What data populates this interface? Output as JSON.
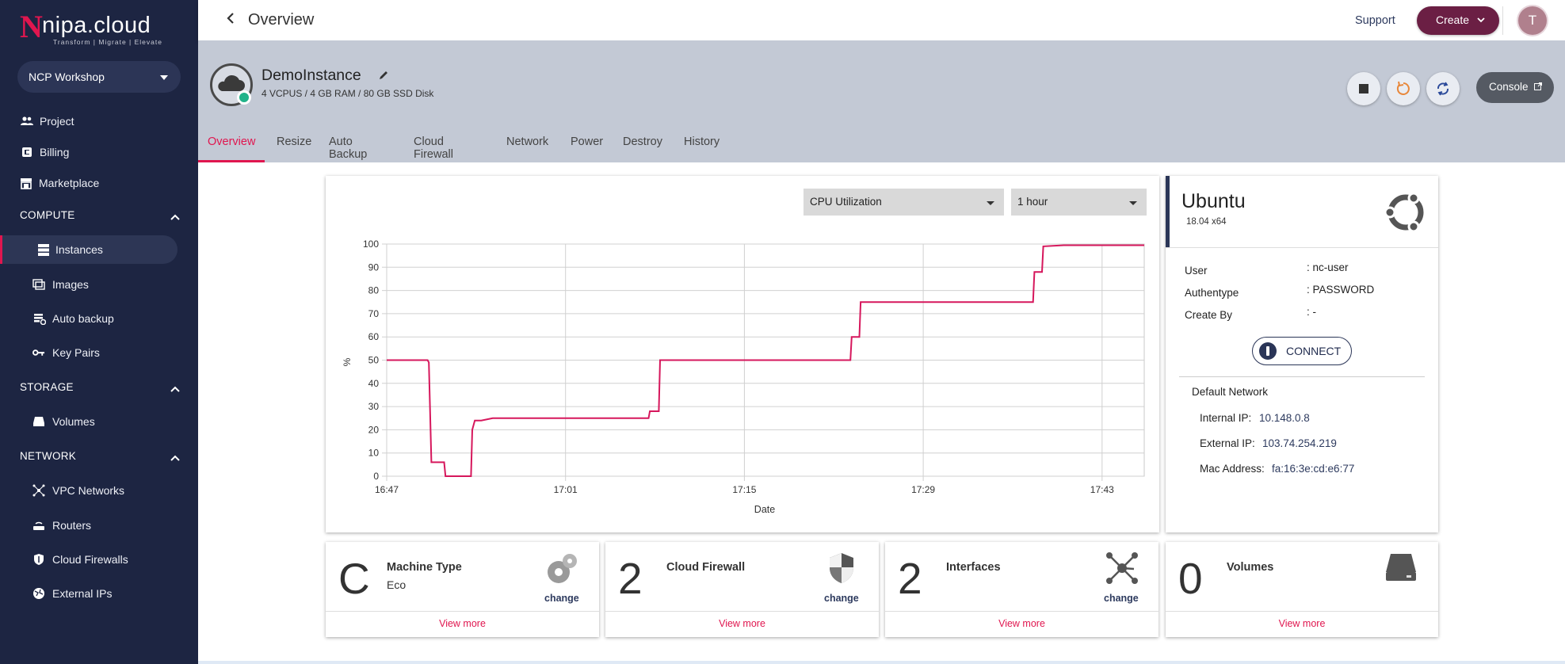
{
  "brand": {
    "letter": "N",
    "name": "nipa.cloud",
    "tagline": "Transform | Migrate | Elevate"
  },
  "workspace": {
    "label": "NCP Workshop"
  },
  "sidebar": {
    "top_items": [
      {
        "label": "Project",
        "icon": "people-icon"
      },
      {
        "label": "Billing",
        "icon": "billing-icon"
      },
      {
        "label": "Marketplace",
        "icon": "store-icon"
      }
    ],
    "sections": [
      {
        "label": "COMPUTE",
        "items": [
          "Instances",
          "Images",
          "Auto backup",
          "Key Pairs"
        ]
      },
      {
        "label": "STORAGE",
        "items": [
          "Volumes"
        ]
      },
      {
        "label": "NETWORK",
        "items": [
          "VPC Networks",
          "Routers",
          "Cloud Firewalls",
          "External IPs"
        ]
      }
    ],
    "active_item": "Instances"
  },
  "topbar": {
    "title": "Overview",
    "support": "Support",
    "create": "Create",
    "avatar": "T"
  },
  "instance": {
    "name": "DemoInstance",
    "spec": "4 VCPUS / 4 GB RAM / 80 GB SSD Disk",
    "status_color": "#21b38a",
    "console": "Console"
  },
  "tabs": [
    "Overview",
    "Resize",
    "Auto Backup",
    "Cloud Firewall",
    "Network",
    "Power",
    "Destroy",
    "History"
  ],
  "active_tab": "Overview",
  "metric_select": "CPU Utilization",
  "range_select": "1 hour",
  "chart_data": {
    "type": "line",
    "xlabel": "Date",
    "ylabel": "%",
    "ylim": [
      0,
      100
    ],
    "yticks": [
      0,
      10,
      20,
      30,
      40,
      50,
      60,
      70,
      80,
      90,
      100
    ],
    "xticks": [
      "16:47",
      "17:01",
      "17:15",
      "17:29",
      "17:43"
    ],
    "xlim_minutes": [
      0,
      59.3
    ],
    "grid": true,
    "color": "#d6175c",
    "series": [
      {
        "x_minutes": [
          0,
          3.2,
          3.3,
          3.5,
          4.5,
          4.6,
          6.6,
          6.7,
          6.9,
          7.4,
          8.3,
          8.4,
          20.5,
          20.6,
          21.3,
          21.4,
          36.3,
          36.4,
          37.0,
          37.1,
          50.6,
          50.7,
          51.3,
          51.4,
          53.0,
          54.0,
          59.3
        ],
        "values": [
          50,
          50,
          49,
          6,
          6,
          0,
          0,
          20,
          24,
          24,
          25,
          25,
          25,
          28,
          28,
          50,
          50,
          60,
          60,
          75,
          75,
          88,
          88,
          99,
          99.5,
          99.5,
          99.5
        ]
      }
    ]
  },
  "os": {
    "name": "Ubuntu",
    "version": "18.04 x64",
    "icon": "ubuntu-icon"
  },
  "details": [
    {
      "key": "User",
      "value": ": nc-user"
    },
    {
      "key": "Authentype",
      "value": ": PASSWORD"
    },
    {
      "key": "Create By",
      "value": ": -"
    }
  ],
  "connect_label": "CONNECT",
  "network": {
    "title": "Default Network",
    "internal_label": "Internal IP:",
    "internal": "10.148.0.8",
    "external_label": "External IP:",
    "external": "103.74.254.219",
    "mac_label": "Mac Address:",
    "mac": "fa:16:3e:cd:e6:77"
  },
  "summary": [
    {
      "big": "C",
      "title": "Machine Type",
      "sub": "Eco",
      "change": "change",
      "more": "View more",
      "icon": "gear-icon"
    },
    {
      "big": "2",
      "title": "Cloud Firewall",
      "sub": "",
      "change": "change",
      "more": "View more",
      "icon": "shield-icon"
    },
    {
      "big": "2",
      "title": "Interfaces",
      "sub": "",
      "change": "change",
      "more": "View more",
      "icon": "network-icon"
    },
    {
      "big": "0",
      "title": "Volumes",
      "sub": "",
      "change": "",
      "more": "View more",
      "icon": "disk-icon"
    }
  ]
}
